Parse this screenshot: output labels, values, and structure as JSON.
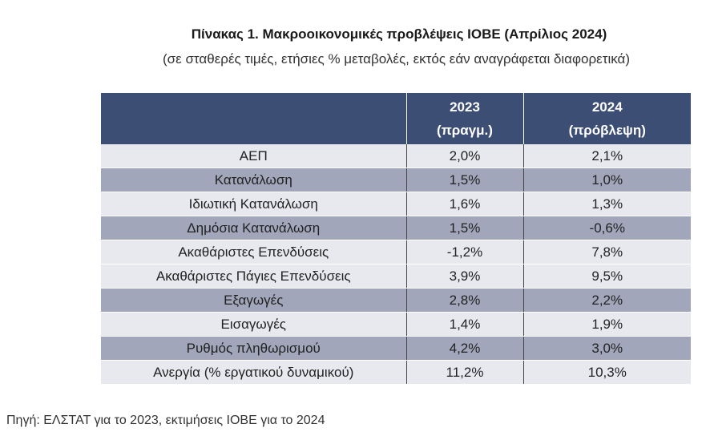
{
  "title": "Πίνακας 1. Μακροοικονομικές προβλέψεις ΙΟΒΕ (Απρίλιος 2024)",
  "subtitle": "(σε σταθερές τιμές, ετήσιες % μεταβολές, εκτός εάν αναγράφεται διαφορετικά)",
  "table": {
    "header": {
      "label": "",
      "col1_year": "2023",
      "col1_note": "(πραγμ.)",
      "col2_year": "2024",
      "col2_note": "(πρόβλεψη)"
    },
    "rows": [
      {
        "label": "ΑΕΠ",
        "v2023": "2,0%",
        "v2024": "2,1%"
      },
      {
        "label": "Κατανάλωση",
        "v2023": "1,5%",
        "v2024": "1,0%"
      },
      {
        "label": "Ιδιωτική Κατανάλωση",
        "v2023": "1,6%",
        "v2024": "1,3%"
      },
      {
        "label": "Δημόσια Κατανάλωση",
        "v2023": "1,5%",
        "v2024": "-0,6%"
      },
      {
        "label": "Ακαθάριστες Επενδύσεις",
        "v2023": "-1,2%",
        "v2024": "7,8%"
      },
      {
        "label": "Ακαθάριστες Πάγιες Επενδύσεις",
        "v2023": "3,9%",
        "v2024": "9,5%"
      },
      {
        "label": "Εξαγωγές",
        "v2023": "2,8%",
        "v2024": "2,2%"
      },
      {
        "label": "Εισαγωγές",
        "v2023": "1,4%",
        "v2024": "1,9%"
      },
      {
        "label": "Ρυθμός πληθωρισμού",
        "v2023": "4,2%",
        "v2024": "3,0%"
      },
      {
        "label": "Ανεργία (% εργατικού δυναμικού)",
        "v2023": "11,2%",
        "v2024": "10,3%"
      }
    ]
  },
  "colors": {
    "header_bg": "#3d4e75",
    "row_light": "#e8e9ef",
    "row_dark": "#a1a6ba"
  },
  "source": "Πηγή: ΕΛΣΤΑΤ για το 2023, εκτιμήσεις ΙΟΒΕ για το 2024"
}
